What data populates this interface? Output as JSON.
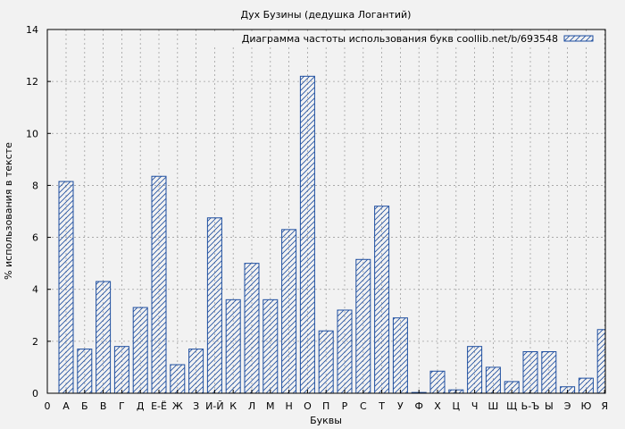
{
  "chart_data": {
    "type": "bar",
    "title": "Дух Бузины (дедушка Логантий)",
    "xlabel": "Буквы",
    "ylabel": "% использования в тексте",
    "legend": {
      "label": "Диаграмма частоты использования букв coollib.net/b/693548",
      "placement": "top-right"
    },
    "ylim": [
      0,
      14
    ],
    "yticks": [
      "0",
      "2",
      "4",
      "6",
      "8",
      "10",
      "12",
      "14"
    ],
    "x_origin_label": "0",
    "grid": true,
    "categories": [
      "А",
      "Б",
      "В",
      "Г",
      "Д",
      "Е-Ё",
      "Ж",
      "З",
      "И-Й",
      "К",
      "Л",
      "М",
      "Н",
      "О",
      "П",
      "Р",
      "С",
      "Т",
      "У",
      "Ф",
      "Х",
      "Ц",
      "Ч",
      "Ш",
      "Щ",
      "Ь-Ъ",
      "Ы",
      "Э",
      "Ю",
      "Я"
    ],
    "values": [
      8.15,
      1.7,
      4.3,
      1.8,
      3.3,
      8.35,
      1.1,
      1.7,
      6.75,
      3.6,
      5.0,
      3.6,
      6.3,
      12.2,
      2.4,
      3.2,
      5.15,
      7.2,
      2.9,
      0.03,
      0.85,
      0.13,
      1.8,
      1.0,
      0.45,
      1.6,
      1.6,
      0.25,
      0.58,
      2.45
    ],
    "colors": {
      "bar_stroke": "#1f4fa0",
      "hatch": "#1f4fa0",
      "plot_bg": "#f2f2f2",
      "grid": "#a0a0a0"
    }
  }
}
